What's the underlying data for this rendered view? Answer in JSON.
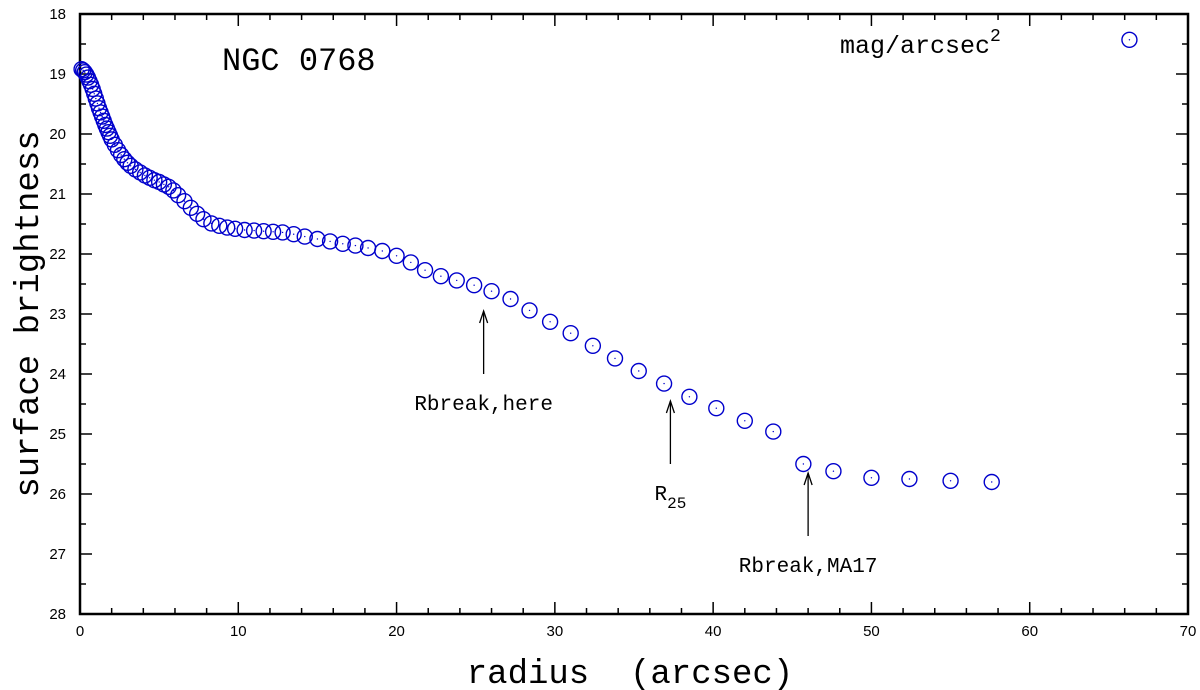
{
  "chart_data": {
    "type": "scatter",
    "title": "NGC 0768",
    "unit_label": "mag/arcsec",
    "unit_superscript": "2",
    "xlabel": "radius  (arcsec)",
    "ylabel": "surface brightness",
    "xlim": [
      0,
      70
    ],
    "ylim": [
      28,
      18
    ],
    "y_inverted": true,
    "xticks": [
      0,
      10,
      20,
      30,
      40,
      50,
      60,
      70
    ],
    "yticks": [
      18,
      19,
      20,
      21,
      22,
      23,
      24,
      25,
      26,
      27,
      28
    ],
    "x_minor_step": 2,
    "y_minor_step": 0.5,
    "grid": false,
    "marker": "open-circle",
    "color": "#0000cc",
    "series": [
      {
        "x": [
          0.1,
          0.2,
          0.3,
          0.4,
          0.5,
          0.6,
          0.7,
          0.8,
          0.9,
          1.0,
          1.1,
          1.2,
          1.3,
          1.4,
          1.5,
          1.6,
          1.7,
          1.8,
          1.9,
          2.0,
          2.2,
          2.4,
          2.6,
          2.8,
          3.0,
          3.2,
          3.5,
          3.8,
          4.1,
          4.4,
          4.7,
          5.0,
          5.3,
          5.6,
          5.9,
          6.2,
          6.6,
          7.0,
          7.4,
          7.8,
          8.3,
          8.8,
          9.3,
          9.8,
          10.4,
          11.0,
          11.6,
          12.2,
          12.8,
          13.5,
          14.2,
          15.0,
          15.8,
          16.6,
          17.4,
          18.2,
          19.1,
          20.0,
          20.9,
          21.8,
          22.8,
          23.8,
          24.9,
          26.0,
          27.2,
          28.4,
          29.7,
          31.0,
          32.4,
          33.8,
          35.3,
          36.9,
          38.5,
          40.2,
          42.0,
          43.8,
          45.7,
          47.6,
          50.0,
          52.4,
          55.0,
          57.6,
          66.3
        ],
        "y": [
          18.92,
          18.94,
          18.97,
          19.01,
          19.06,
          19.12,
          19.18,
          19.25,
          19.33,
          19.41,
          19.49,
          19.57,
          19.64,
          19.71,
          19.78,
          19.85,
          19.91,
          19.97,
          20.03,
          20.09,
          20.18,
          20.27,
          20.35,
          20.42,
          20.48,
          20.53,
          20.59,
          20.64,
          20.69,
          20.73,
          20.77,
          20.8,
          20.84,
          20.88,
          20.94,
          21.02,
          21.12,
          21.23,
          21.33,
          21.42,
          21.49,
          21.53,
          21.56,
          21.58,
          21.6,
          21.61,
          21.62,
          21.63,
          21.64,
          21.67,
          21.71,
          21.75,
          21.79,
          21.83,
          21.86,
          21.9,
          21.95,
          22.03,
          22.14,
          22.27,
          22.37,
          22.44,
          22.52,
          22.62,
          22.75,
          22.94,
          23.13,
          23.32,
          23.53,
          23.74,
          23.95,
          24.16,
          24.38,
          24.57,
          24.78,
          24.96,
          25.5,
          25.62,
          25.73,
          25.75,
          25.78,
          25.8,
          18.43
        ]
      }
    ],
    "annotations": [
      {
        "text": "Rbreak,here",
        "x": 25.5,
        "arrow_tip_y": 22.95,
        "arrow_tail_y": 24.0,
        "label_y": 24.6,
        "sub": ""
      },
      {
        "text": "R",
        "sub": "25",
        "x": 37.3,
        "arrow_tip_y": 24.45,
        "arrow_tail_y": 25.5,
        "label_y": 26.1
      },
      {
        "text": "Rbreak,MA17",
        "x": 46.0,
        "arrow_tip_y": 25.65,
        "arrow_tail_y": 26.7,
        "label_y": 27.3,
        "sub": ""
      }
    ]
  }
}
